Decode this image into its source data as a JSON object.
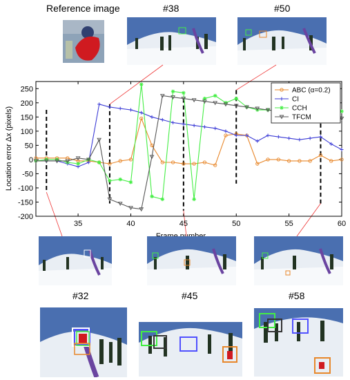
{
  "labels": {
    "reference": "Reference image",
    "f38": "#38",
    "f50": "#50",
    "f32": "#32",
    "f45": "#45",
    "f58": "#58"
  },
  "chart_data": {
    "type": "line",
    "xlabel": "Frame number",
    "ylabel": "Location error Δx (pixels)",
    "xlim": [
      31,
      60
    ],
    "ylim": [
      -200,
      275
    ],
    "xticks": [
      35,
      40,
      45,
      50,
      55,
      60
    ],
    "yticks": [
      -200,
      -150,
      -100,
      -50,
      0,
      50,
      100,
      150,
      200,
      250
    ],
    "legend_position": "top-right",
    "highlighted_frames": [
      32,
      38,
      45,
      50,
      58
    ],
    "series": [
      {
        "name": "ABC (α=0.2)",
        "color": "#e8872a",
        "marker": "circle",
        "x": [
          31,
          32,
          33,
          34,
          35,
          36,
          37,
          38,
          39,
          40,
          41,
          42,
          43,
          44,
          45,
          46,
          47,
          48,
          49,
          50,
          51,
          52,
          53,
          54,
          55,
          56,
          57,
          58,
          59,
          60
        ],
        "y": [
          5,
          5,
          5,
          5,
          -5,
          -5,
          -10,
          -15,
          -5,
          0,
          145,
          50,
          -10,
          -10,
          -15,
          -15,
          -10,
          -20,
          85,
          90,
          85,
          -15,
          0,
          0,
          -5,
          -5,
          -5,
          15,
          -5,
          0
        ]
      },
      {
        "name": "CI",
        "color": "#3b3bd6",
        "marker": "plus",
        "x": [
          31,
          32,
          33,
          34,
          35,
          36,
          37,
          38,
          39,
          40,
          41,
          42,
          43,
          44,
          45,
          46,
          47,
          48,
          49,
          50,
          51,
          52,
          53,
          54,
          55,
          56,
          57,
          58,
          59,
          60
        ],
        "y": [
          -5,
          -5,
          -5,
          -15,
          -25,
          -10,
          195,
          185,
          180,
          175,
          165,
          150,
          140,
          130,
          125,
          120,
          115,
          110,
          100,
          85,
          85,
          65,
          85,
          80,
          75,
          70,
          75,
          80,
          55,
          35
        ]
      },
      {
        "name": "CCH",
        "color": "#44ee44",
        "marker": "star",
        "x": [
          31,
          32,
          33,
          34,
          35,
          36,
          37,
          38,
          39,
          40,
          41,
          42,
          43,
          44,
          45,
          46,
          47,
          48,
          49,
          50,
          51,
          52,
          53,
          54,
          55,
          56,
          57,
          58,
          59,
          60
        ],
        "y": [
          -5,
          0,
          0,
          -10,
          -15,
          0,
          -10,
          -75,
          -70,
          -80,
          265,
          -130,
          -140,
          240,
          235,
          -140,
          215,
          225,
          200,
          215,
          185,
          175,
          175,
          170,
          165,
          165,
          165,
          160,
          170,
          170
        ]
      },
      {
        "name": "TFCM",
        "color": "#555555",
        "marker": "triangle",
        "x": [
          31,
          32,
          33,
          34,
          35,
          36,
          37,
          38,
          39,
          40,
          41,
          42,
          43,
          44,
          45,
          46,
          47,
          48,
          49,
          50,
          51,
          52,
          53,
          54,
          55,
          56,
          57,
          58,
          59,
          60
        ],
        "y": [
          -5,
          -5,
          -5,
          -5,
          5,
          0,
          70,
          -140,
          -155,
          -170,
          -175,
          10,
          225,
          220,
          215,
          210,
          205,
          200,
          195,
          190,
          185,
          180,
          175,
          170,
          165,
          160,
          160,
          155,
          150,
          145
        ]
      }
    ]
  }
}
